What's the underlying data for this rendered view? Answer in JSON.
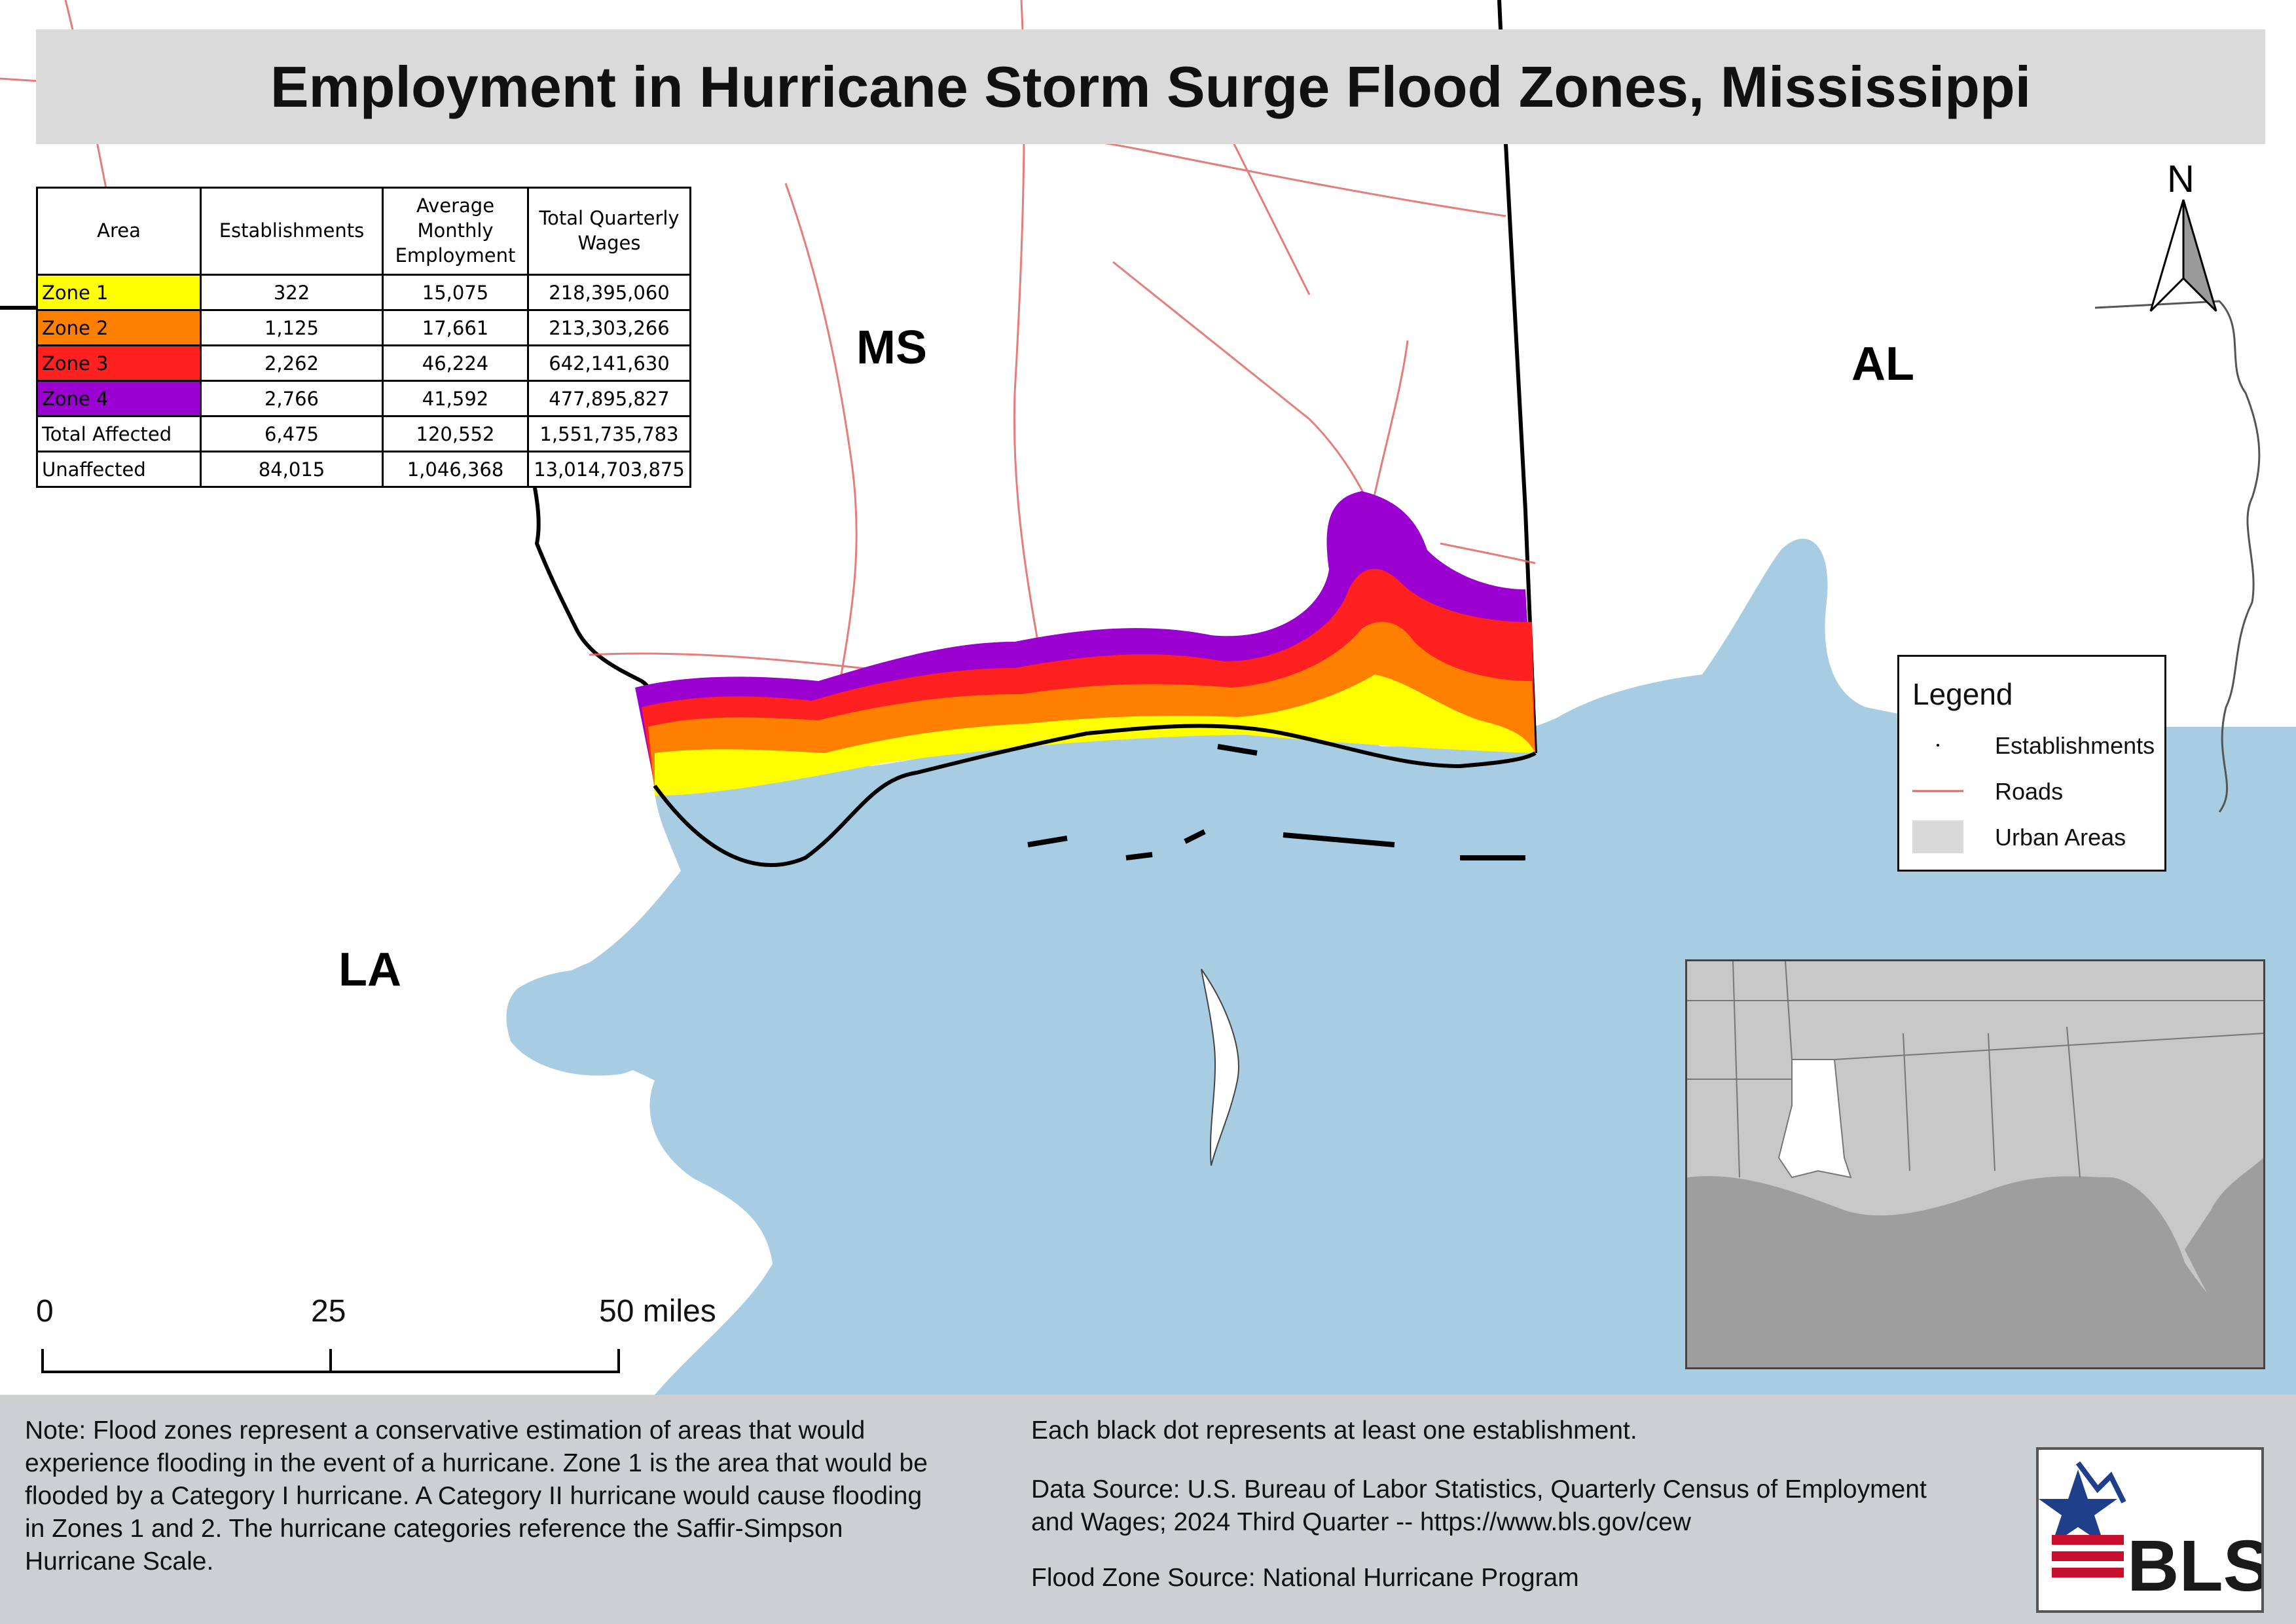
{
  "title": "Employment in Hurricane Storm Surge Flood Zones, Mississippi",
  "state_labels": {
    "ms": "MS",
    "al": "AL",
    "la": "LA"
  },
  "table": {
    "headers": [
      "Area",
      "Establishments",
      "Average Monthly Employment",
      "Total Quarterly Wages"
    ],
    "rows": [
      {
        "area": "Zone 1",
        "color": "#ffff00",
        "establishments": "322",
        "employment": "15,075",
        "wages": "218,395,060"
      },
      {
        "area": "Zone 2",
        "color": "#ff8000",
        "establishments": "1,125",
        "employment": "17,661",
        "wages": "213,303,266"
      },
      {
        "area": "Zone 3",
        "color": "#ff2020",
        "establishments": "2,262",
        "employment": "46,224",
        "wages": "642,141,630"
      },
      {
        "area": "Zone 4",
        "color": "#9a00d0",
        "establishments": "2,766",
        "employment": "41,592",
        "wages": "477,895,827"
      },
      {
        "area": "Total Affected",
        "color": "#ffffff",
        "establishments": "6,475",
        "employment": "120,552",
        "wages": "1,551,735,783"
      },
      {
        "area": "Unaffected",
        "color": "#ffffff",
        "establishments": "84,015",
        "employment": "1,046,368",
        "wages": "13,014,703,875"
      }
    ]
  },
  "north_arrow": "N",
  "legend": {
    "title": "Legend",
    "items": [
      {
        "label": "Establishments",
        "symbol": "dot"
      },
      {
        "label": "Roads",
        "symbol": "line",
        "color": "#e06666"
      },
      {
        "label": "Urban Areas",
        "symbol": "fill",
        "color": "#d9d9d9"
      }
    ]
  },
  "scale_bar": {
    "ticks": [
      "0",
      "25",
      "50 miles"
    ]
  },
  "footer": {
    "note_lines": [
      "Note: Flood zones represent a conservative estimation of areas that would",
      "experience flooding in the event of a hurricane. Zone 1 is the area that would be",
      "flooded by a Category I hurricane. A Category II hurricane would cause flooding",
      "in Zones 1 and 2. The hurricane categories reference the Saffir-Simpson",
      "Hurricane Scale."
    ],
    "dot_note": "Each black dot represents at least one establishment.",
    "data_source_lines": [
      "Data Source: U.S. Bureau of Labor Statistics, Quarterly Census of Employment",
      "and Wages; 2024 Third Quarter -- https://www.bls.gov/cew"
    ],
    "flood_source": "Flood Zone Source: National Hurricane Program",
    "logo_text": "BLS"
  },
  "colors": {
    "water": "#a8cde2",
    "zone1": "#ffff00",
    "zone2": "#ff8000",
    "zone3": "#ff2020",
    "zone4": "#9a00d0",
    "road": "#e06666",
    "footer_bg": "#cdd0d3"
  }
}
